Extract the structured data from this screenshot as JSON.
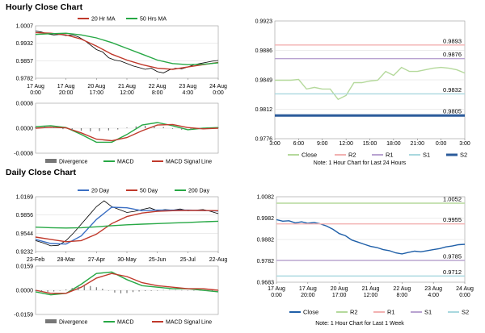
{
  "titles": {
    "hourly": "Hourly Close Chart",
    "daily": "Daily Close Chart"
  },
  "chart_data": [
    {
      "id": "hourly_price",
      "type": "line",
      "x_ticks": [
        "17 Aug\n0:00",
        "17 Aug\n20:00",
        "20 Aug\n17:00",
        "21 Aug\n12:00",
        "22 Aug\n8:00",
        "23 Aug\n4:00",
        "24 Aug\n0:00"
      ],
      "ylim": [
        0.9782,
        1.0007
      ],
      "y_ticks": [
        "1.0007",
        "0.9932",
        "0.9857",
        "0.9782"
      ],
      "grid": true,
      "legend_position": "top",
      "series": [
        {
          "name": "",
          "color": "#000000",
          "x": [
            0,
            4,
            8,
            12,
            16,
            20,
            24,
            28,
            32,
            36,
            40,
            44,
            48,
            52,
            56,
            60,
            64,
            68,
            72,
            76,
            80,
            84,
            88,
            92,
            96,
            100,
            104,
            108,
            112,
            116,
            120
          ],
          "values": [
            0.9985,
            0.998,
            0.9972,
            0.9968,
            0.997,
            0.9965,
            0.9968,
            0.996,
            0.9945,
            0.9925,
            0.9905,
            0.9895,
            0.987,
            0.986,
            0.9855,
            0.9845,
            0.9835,
            0.9828,
            0.982,
            0.9825,
            0.981,
            0.9805,
            0.9818,
            0.9825,
            0.9822,
            0.983,
            0.984,
            0.9845,
            0.985,
            0.9855,
            0.9858
          ]
        },
        {
          "name": "20 Hr MA",
          "color": "#c0392b",
          "x": [
            0,
            10,
            20,
            30,
            40,
            50,
            60,
            70,
            80,
            90,
            100,
            110,
            120
          ],
          "values": [
            0.9978,
            0.9975,
            0.9968,
            0.995,
            0.992,
            0.9885,
            0.986,
            0.984,
            0.9825,
            0.982,
            0.983,
            0.984,
            0.985
          ]
        },
        {
          "name": "50 Hrs MA",
          "color": "#27a845",
          "x": [
            0,
            10,
            20,
            30,
            40,
            50,
            60,
            70,
            80,
            90,
            100,
            110,
            120
          ],
          "values": [
            0.997,
            0.9973,
            0.9975,
            0.9968,
            0.9955,
            0.9935,
            0.991,
            0.9885,
            0.986,
            0.9845,
            0.984,
            0.9842,
            0.9848
          ]
        }
      ]
    },
    {
      "id": "hourly_macd",
      "type": "line",
      "ylim": [
        -0.0008,
        0.0008
      ],
      "y_ticks": [
        "0.0008",
        "0.0000",
        "-0.0008"
      ],
      "grid": true,
      "legend_position": "bottom",
      "legend": [
        "Divergence",
        "MACD",
        "MACD Signal Line"
      ],
      "series": [
        {
          "name": "MACD",
          "color": "#27a845",
          "x": [
            0,
            10,
            20,
            30,
            40,
            50,
            60,
            70,
            80,
            90,
            100,
            110,
            120
          ],
          "values": [
            5e-05,
            8e-05,
            2e-05,
            -0.0002,
            -0.00045,
            -0.00045,
            -0.0002,
            0.0001,
            0.00018,
            8e-05,
            -5e-05,
            0.0,
            2e-05
          ]
        },
        {
          "name": "MACD Signal Line",
          "color": "#c0392b",
          "x": [
            0,
            10,
            20,
            30,
            40,
            50,
            60,
            70,
            80,
            90,
            100,
            110,
            120
          ],
          "values": [
            0.0,
            3e-05,
            1e-05,
            -0.00015,
            -0.00035,
            -0.0004,
            -0.0003,
            -8e-05,
            0.0001,
            0.00012,
            2e-05,
            -2e-05,
            0.0
          ]
        },
        {
          "name": "Divergence",
          "type": "bar",
          "color": "#777777",
          "x": [
            0,
            6,
            12,
            18,
            24,
            30,
            36,
            42,
            48,
            54,
            60,
            66,
            72,
            78,
            84,
            90,
            96,
            102,
            108,
            114,
            120
          ],
          "values": [
            4e-05,
            5e-05,
            3e-05,
            -3e-05,
            -6e-05,
            -8e-05,
            -0.0001,
            -9e-05,
            -7e-05,
            -4e-05,
            2e-05,
            6e-05,
            8e-05,
            7e-05,
            4e-05,
            -2e-05,
            -5e-05,
            -4e-05,
            -2e-05,
            1e-05,
            2e-05
          ]
        }
      ]
    },
    {
      "id": "hourly_levels",
      "type": "line",
      "x_ticks": [
        "3:00",
        "6:00",
        "9:00",
        "12:00",
        "15:00",
        "18:00",
        "21:00",
        "0:00",
        "3:00"
      ],
      "ylim": [
        0.9776,
        0.9923
      ],
      "y_ticks": [
        "0.9923",
        "0.9886",
        "0.9849",
        "0.9812",
        "0.9776"
      ],
      "grid": true,
      "legend_position": "bottom",
      "series": [
        {
          "name": "Close",
          "color": "#b5d99c",
          "x": [
            0,
            1,
            2,
            3,
            4,
            5,
            6,
            7,
            8,
            9,
            10,
            11,
            12,
            13,
            14,
            15,
            16,
            17,
            18,
            19,
            20,
            21,
            22,
            23,
            24
          ],
          "values": [
            0.9849,
            0.9849,
            0.9849,
            0.985,
            0.9838,
            0.984,
            0.9838,
            0.9838,
            0.9825,
            0.983,
            0.9846,
            0.9846,
            0.9848,
            0.9849,
            0.986,
            0.9855,
            0.9865,
            0.986,
            0.986,
            0.9862,
            0.9864,
            0.9865,
            0.9864,
            0.9862,
            0.9858
          ]
        },
        {
          "name": "R2",
          "color": "#f2b1b1",
          "x": [
            0,
            24
          ],
          "values": [
            0.9893,
            0.9893
          ]
        },
        {
          "name": "R1",
          "color": "#b9a3d1",
          "x": [
            0,
            24
          ],
          "values": [
            0.9876,
            0.9876
          ]
        },
        {
          "name": "S1",
          "color": "#a9d8df",
          "x": [
            0,
            24
          ],
          "values": [
            0.9832,
            0.9832
          ]
        },
        {
          "name": "S2",
          "color": "#2b5b9b",
          "x": [
            0,
            24
          ],
          "values": [
            0.9805,
            0.9805
          ]
        }
      ],
      "level_labels": [
        "0.9893",
        "0.9876",
        "0.9832",
        "0.9805"
      ],
      "note": "Note: 1 Hour Chart for Last 24 Hours"
    },
    {
      "id": "daily_price",
      "type": "line",
      "x_ticks": [
        "23-Feb",
        "28-Mar",
        "27-Apr",
        "30-May",
        "25-Jun",
        "25-Jul",
        "22-Aug"
      ],
      "ylim": [
        0.9232,
        1.0169
      ],
      "y_ticks": [
        "1.0169",
        "0.9856",
        "0.9544",
        "0.9232"
      ],
      "grid": true,
      "legend_position": "top",
      "series": [
        {
          "name": "",
          "color": "#000000",
          "x": [
            0,
            5,
            10,
            15,
            20,
            25,
            30,
            35,
            40,
            45,
            50,
            55,
            60,
            65,
            70,
            75,
            80,
            85,
            90,
            95,
            100,
            105,
            110,
            115,
            120
          ],
          "values": [
            0.942,
            0.938,
            0.933,
            0.934,
            0.942,
            0.955,
            0.97,
            0.985,
            1.0,
            1.01,
            1.0,
            0.995,
            0.99,
            0.992,
            0.995,
            0.998,
            0.993,
            0.995,
            0.994,
            0.996,
            0.993,
            0.994,
            0.995,
            0.992,
            0.988
          ]
        },
        {
          "name": "20 Day",
          "color": "#3b6fc3",
          "x": [
            0,
            10,
            20,
            30,
            40,
            50,
            60,
            70,
            80,
            90,
            100,
            110,
            120
          ],
          "values": [
            0.944,
            0.937,
            0.936,
            0.95,
            0.978,
            0.999,
            0.998,
            0.993,
            0.994,
            0.994,
            0.994,
            0.9935,
            0.9925
          ]
        },
        {
          "name": "50 Day",
          "color": "#c0392b",
          "x": [
            0,
            10,
            20,
            30,
            40,
            50,
            60,
            70,
            80,
            90,
            100,
            110,
            120
          ],
          "values": [
            0.948,
            0.944,
            0.94,
            0.942,
            0.953,
            0.971,
            0.983,
            0.989,
            0.992,
            0.993,
            0.9935,
            0.9935,
            0.993
          ]
        },
        {
          "name": "200 Day",
          "color": "#27a845",
          "x": [
            0,
            10,
            20,
            30,
            40,
            50,
            60,
            70,
            80,
            90,
            100,
            110,
            120
          ],
          "values": [
            0.965,
            0.964,
            0.9635,
            0.964,
            0.9655,
            0.9675,
            0.969,
            0.97,
            0.971,
            0.972,
            0.973,
            0.974,
            0.975
          ]
        }
      ]
    },
    {
      "id": "daily_macd",
      "type": "line",
      "ylim": [
        -0.0159,
        0.0159
      ],
      "y_ticks": [
        "0.0159",
        "0.0000",
        "-0.0159"
      ],
      "grid": true,
      "legend_position": "bottom",
      "legend": [
        "Divergence",
        "MACD",
        "MACD Signal Line"
      ],
      "series": [
        {
          "name": "MACD",
          "color": "#27a845",
          "x": [
            0,
            10,
            20,
            30,
            40,
            50,
            60,
            70,
            80,
            90,
            100,
            110,
            120
          ],
          "values": [
            -0.001,
            -0.003,
            -0.002,
            0.004,
            0.011,
            0.012,
            0.007,
            0.003,
            0.002,
            0.001,
            0.001,
            0.0,
            -0.001
          ]
        },
        {
          "name": "MACD Signal Line",
          "color": "#c0392b",
          "x": [
            0,
            10,
            20,
            30,
            40,
            50,
            60,
            70,
            80,
            90,
            100,
            110,
            120
          ],
          "values": [
            0.0,
            -0.002,
            -0.002,
            0.002,
            0.008,
            0.011,
            0.009,
            0.005,
            0.003,
            0.002,
            0.001,
            0.001,
            0.0
          ]
        },
        {
          "name": "Divergence",
          "type": "bar",
          "color": "#777777",
          "x": [
            0,
            4,
            8,
            12,
            16,
            20,
            24,
            28,
            32,
            36,
            40,
            44,
            48,
            52,
            56,
            60,
            64,
            68,
            72,
            76,
            80,
            84,
            88,
            92,
            96,
            100,
            104,
            108,
            112,
            116,
            120
          ],
          "values": [
            -0.0005,
            -0.0008,
            -0.001,
            -0.0008,
            -0.0003,
            0.0005,
            0.0015,
            0.0025,
            0.003,
            0.0028,
            0.002,
            0.001,
            0.0,
            -0.0015,
            -0.002,
            -0.0018,
            -0.0012,
            -0.0008,
            -0.0005,
            -0.0004,
            -0.0003,
            0.0002,
            0.0003,
            0.0002,
            0.0001,
            -0.0001,
            -0.0002,
            -0.0003,
            -0.0002,
            -0.0001,
            -0.0001
          ]
        }
      ]
    },
    {
      "id": "daily_levels",
      "type": "line",
      "x_ticks": [
        "17 Aug\n0:00",
        "17 Aug\n20:00",
        "20 Aug\n17:00",
        "21 Aug\n12:00",
        "22 Aug\n8:00",
        "23 Aug\n4:00",
        "24 Aug\n0:00"
      ],
      "ylim": [
        0.9683,
        1.0082
      ],
      "y_ticks": [
        "1.0082",
        "0.9982",
        "0.9882",
        "0.9782",
        "0.9683"
      ],
      "grid": true,
      "legend_position": "bottom",
      "series": [
        {
          "name": "Close",
          "color": "#1f5fa8",
          "x": [
            0,
            4,
            8,
            12,
            16,
            20,
            24,
            28,
            32,
            36,
            40,
            44,
            48,
            52,
            56,
            60,
            64,
            68,
            72,
            76,
            80,
            84,
            88,
            92,
            96,
            100,
            104,
            108,
            112,
            116,
            120
          ],
          "values": [
            0.9975,
            0.9968,
            0.997,
            0.996,
            0.9965,
            0.9958,
            0.9962,
            0.9955,
            0.9945,
            0.993,
            0.991,
            0.99,
            0.988,
            0.987,
            0.986,
            0.985,
            0.9845,
            0.9835,
            0.983,
            0.982,
            0.9815,
            0.9822,
            0.9828,
            0.9825,
            0.983,
            0.9835,
            0.984,
            0.9848,
            0.9852,
            0.9858,
            0.986
          ]
        },
        {
          "name": "R2",
          "color": "#b5d99c",
          "x": [
            0,
            120
          ],
          "values": [
            1.0052,
            1.0052
          ]
        },
        {
          "name": "R1",
          "color": "#f2b1b1",
          "x": [
            0,
            120
          ],
          "values": [
            0.9955,
            0.9955
          ]
        },
        {
          "name": "S1",
          "color": "#b9a3d1",
          "x": [
            0,
            120
          ],
          "values": [
            0.9785,
            0.9785
          ]
        },
        {
          "name": "S2",
          "color": "#a9d8df",
          "x": [
            0,
            120
          ],
          "values": [
            0.9712,
            0.9712
          ]
        }
      ],
      "level_labels": [
        "1.0052",
        "0.9955",
        "0.9785",
        "0.9712"
      ],
      "note": "Note: 1 Hour Chart for Last 1 Week"
    }
  ]
}
